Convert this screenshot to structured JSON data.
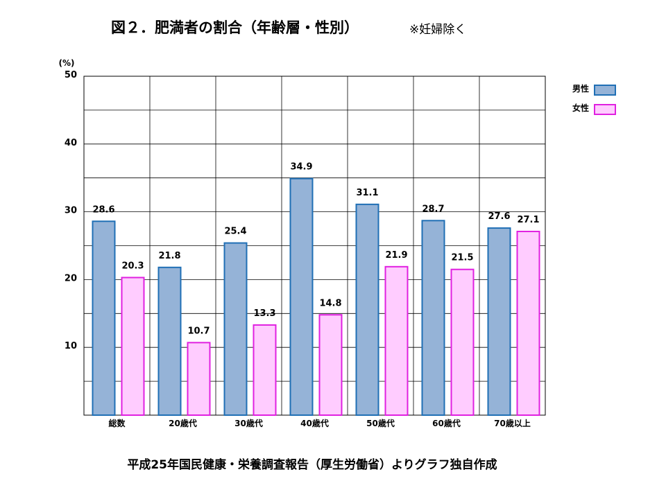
{
  "title": "図２．肥満者の割合（年齢層・性別）",
  "note": "※妊婦除く",
  "footer": "平成25年国民健康・栄養調査報告（厚生労働省）よりグラフ独自作成",
  "colors": {
    "male_fill": "#95B3D7",
    "male_stroke": "#1F6FB5",
    "female_fill": "#FFCCFF",
    "female_stroke": "#E020E0",
    "grid": "#000000"
  },
  "chart_data": {
    "type": "bar",
    "unit_label": "(%)",
    "ylim": [
      0,
      50
    ],
    "y_ticks": [
      "10",
      "20",
      "30",
      "40",
      "50"
    ],
    "y_tick_values": [
      10,
      20,
      30,
      40,
      50
    ],
    "grid": true,
    "legend_position": "right",
    "categories": [
      "総数",
      "20歳代",
      "30歳代",
      "40歳代",
      "50歳代",
      "60歳代",
      "70歳以上"
    ],
    "series": [
      {
        "name": "男性",
        "values": [
          28.6,
          21.8,
          25.4,
          34.9,
          31.1,
          28.7,
          27.6
        ],
        "labels": [
          "28.6",
          "21.8",
          "25.4",
          "34.9",
          "31.1",
          "28.7",
          "27.6"
        ]
      },
      {
        "name": "女性",
        "values": [
          20.3,
          10.7,
          13.3,
          14.8,
          21.9,
          21.5,
          27.1
        ],
        "labels": [
          "20.3",
          "10.7",
          "13.3",
          "14.8",
          "21.9",
          "21.5",
          "27.1"
        ]
      }
    ]
  }
}
